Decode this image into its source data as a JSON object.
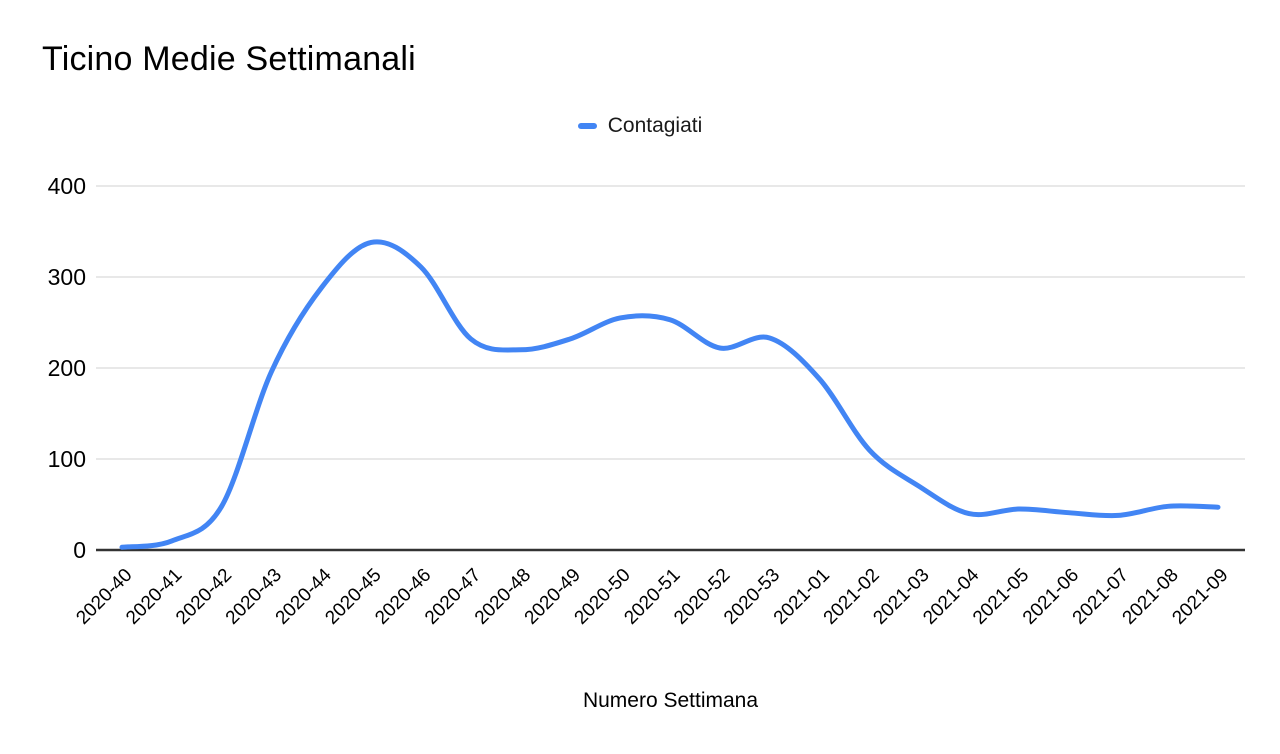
{
  "header": {
    "title": "Ticino Medie Settimanali"
  },
  "legend": {
    "items": [
      {
        "label": "Contagiati",
        "color": "#4285f4"
      }
    ]
  },
  "chart_data": {
    "type": "line",
    "title": "Ticino Medie Settimanali",
    "xlabel": "Numero Settimana",
    "ylabel": "",
    "categories": [
      "2020-40",
      "2020-41",
      "2020-42",
      "2020-43",
      "2020-44",
      "2020-45",
      "2020-46",
      "2020-47",
      "2020-48",
      "2020-49",
      "2020-50",
      "2020-51",
      "2020-52",
      "2020-53",
      "2021-01",
      "2021-02",
      "2021-03",
      "2021-04",
      "2021-05",
      "2021-06",
      "2021-07",
      "2021-08",
      "2021-09"
    ],
    "series": [
      {
        "name": "Contagiati",
        "color": "#4285f4",
        "values": [
          3,
          10,
          48,
          196,
          288,
          338,
          311,
          232,
          220,
          232,
          255,
          253,
          222,
          233,
          188,
          110,
          70,
          40,
          45,
          41,
          38,
          48,
          47
        ]
      }
    ],
    "ylim": [
      0,
      400
    ],
    "yticks": [
      0,
      100,
      200,
      300,
      400
    ],
    "grid": true,
    "line_smooth": true,
    "legend_position": "top-center"
  },
  "colors": {
    "line": "#4285f4",
    "grid": "#e0e0e0",
    "axis": "#333333",
    "text": "#000000"
  }
}
